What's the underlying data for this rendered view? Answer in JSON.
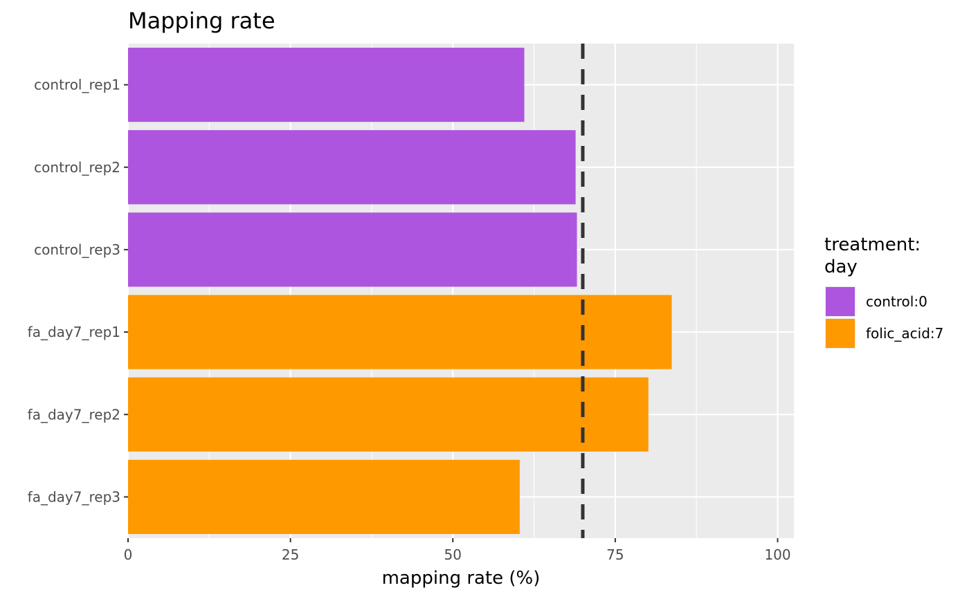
{
  "chart_data": {
    "type": "bar",
    "orientation": "horizontal",
    "title": "Mapping rate",
    "xlabel": "mapping rate (%)",
    "ylabel": "",
    "xlim": [
      0,
      102.5
    ],
    "x_ticks": [
      0,
      25,
      50,
      75,
      100
    ],
    "x_tick_labels": [
      "0",
      "25",
      "50",
      "75",
      "100"
    ],
    "categories": [
      "control_rep1",
      "control_rep2",
      "control_rep3",
      "fa_day7_rep1",
      "fa_day7_rep2",
      "fa_day7_rep3"
    ],
    "values": [
      61.0,
      68.9,
      69.1,
      83.7,
      80.1,
      60.3
    ],
    "groups": [
      "control:0",
      "control:0",
      "control:0",
      "folic_acid:7",
      "folic_acid:7",
      "folic_acid:7"
    ],
    "reference_line": {
      "x": 70,
      "style": "dashed",
      "color": "#333333"
    },
    "legend": {
      "title_lines": [
        "treatment:",
        "day"
      ],
      "placement": "right",
      "entries": [
        {
          "label": "control:0",
          "color": "#ae55df"
        },
        {
          "label": "folic_acid:7",
          "color": "#ff9900"
        }
      ]
    },
    "grid": true,
    "panel_background": "#ebebeb",
    "grid_color": "#ffffff"
  }
}
